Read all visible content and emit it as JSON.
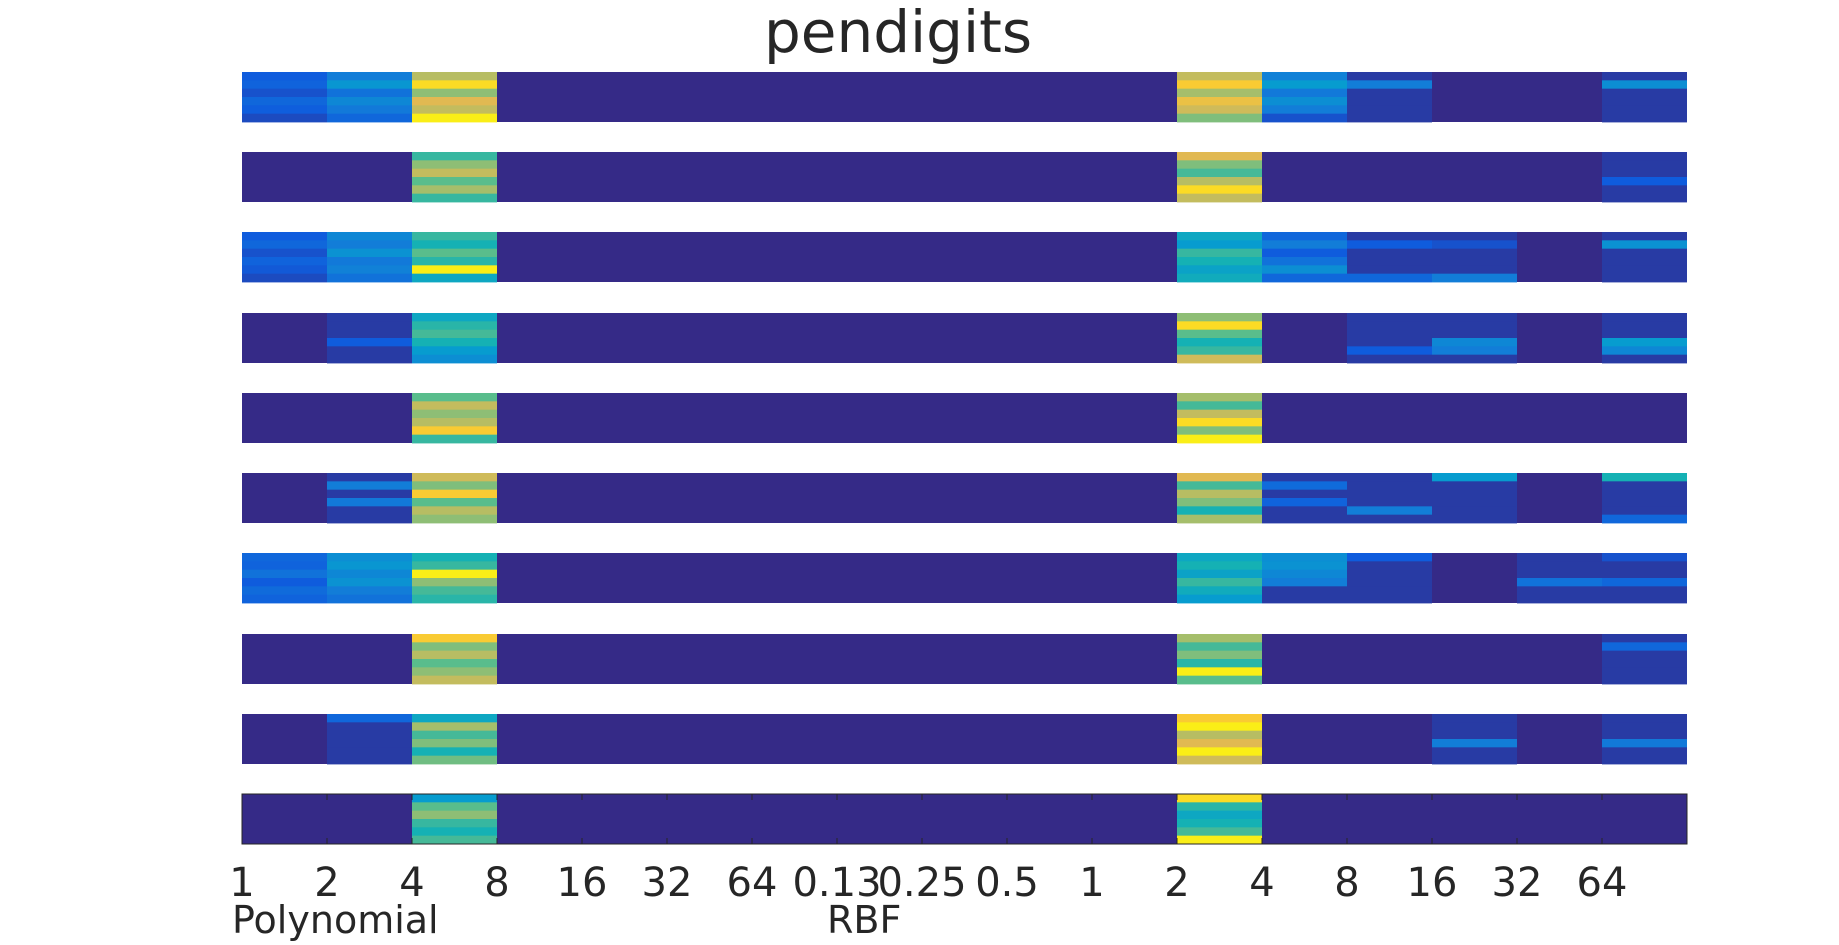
{
  "chart_data": {
    "type": "heatmap",
    "title": "pendigits",
    "colormap": "parula",
    "x_ticks": [
      "1",
      "2",
      "4",
      "8",
      "16",
      "32",
      "64",
      "0.13",
      "0.25",
      "0.5",
      "1",
      "2",
      "4",
      "8",
      "16",
      "32",
      "64"
    ],
    "x_groups": [
      {
        "label": "Polynomial",
        "columns": [
          0,
          6
        ]
      },
      {
        "label": "RBF",
        "columns": [
          7,
          16
        ]
      }
    ],
    "value_range": [
      0,
      1
    ],
    "strips": [
      {
        "stripes": [
          {
            "col": 0,
            "v": [
              0.15,
              0.18,
              0.12,
              0.2,
              0.16,
              0.1
            ]
          },
          {
            "col": 1,
            "v": [
              0.3,
              0.42,
              0.25,
              0.35,
              0.28,
              0.2
            ]
          },
          {
            "col": 2,
            "v": [
              0.78,
              0.95,
              0.72,
              0.85,
              0.8,
              0.98
            ]
          },
          {
            "col": 11,
            "v": [
              0.8,
              0.92,
              0.75,
              0.88,
              0.82,
              0.7
            ]
          },
          {
            "col": 12,
            "v": [
              0.32,
              0.45,
              0.28,
              0.38,
              0.3,
              0.12
            ]
          },
          {
            "col": 13,
            "v": [
              0.05,
              0.3,
              0.05,
              0.05,
              0.05,
              0.05
            ]
          },
          {
            "col": 16,
            "v": [
              0.05,
              0.38,
              0.05,
              0.05,
              0.05,
              0.05
            ]
          }
        ]
      },
      {
        "stripes": [
          {
            "col": 2,
            "v": [
              0.6,
              0.72,
              0.8,
              0.65,
              0.75,
              0.6
            ]
          },
          {
            "col": 11,
            "v": [
              0.85,
              0.7,
              0.62,
              0.78,
              0.95,
              0.8
            ]
          },
          {
            "col": 16,
            "v": [
              0.05,
              0.05,
              0.05,
              0.15,
              0.05,
              0.05
            ]
          }
        ]
      },
      {
        "stripes": [
          {
            "col": 0,
            "v": [
              0.15,
              0.2,
              0.12,
              0.18,
              0.14,
              0.1
            ]
          },
          {
            "col": 1,
            "v": [
              0.35,
              0.3,
              0.4,
              0.28,
              0.32,
              0.25
            ]
          },
          {
            "col": 2,
            "v": [
              0.6,
              0.55,
              0.65,
              0.58,
              0.98,
              0.5
            ]
          },
          {
            "col": 11,
            "v": [
              0.5,
              0.45,
              0.6,
              0.55,
              0.48,
              0.52
            ]
          },
          {
            "col": 12,
            "v": [
              0.2,
              0.3,
              0.15,
              0.25,
              0.38,
              0.2
            ]
          },
          {
            "col": 13,
            "v": [
              0.05,
              0.15,
              0.05,
              0.05,
              0.05,
              0.2
            ]
          },
          {
            "col": 14,
            "v": [
              0.05,
              0.12,
              0.05,
              0.05,
              0.05,
              0.3
            ]
          },
          {
            "col": 16,
            "v": [
              0.05,
              0.4,
              0.05,
              0.05,
              0.05,
              0.05
            ]
          }
        ]
      },
      {
        "stripes": [
          {
            "col": 1,
            "v": [
              0.05,
              0.05,
              0.05,
              0.15,
              0.05,
              0.05
            ]
          },
          {
            "col": 2,
            "v": [
              0.5,
              0.58,
              0.62,
              0.55,
              0.45,
              0.38
            ]
          },
          {
            "col": 11,
            "v": [
              0.72,
              0.95,
              0.65,
              0.55,
              0.6,
              0.82
            ]
          },
          {
            "col": 13,
            "v": [
              0.05,
              0.05,
              0.05,
              0.05,
              0.15,
              0.05
            ]
          },
          {
            "col": 14,
            "v": [
              0.05,
              0.05,
              0.05,
              0.35,
              0.3,
              0.05
            ]
          },
          {
            "col": 16,
            "v": [
              0.05,
              0.05,
              0.05,
              0.45,
              0.35,
              0.05
            ]
          }
        ]
      },
      {
        "stripes": [
          {
            "col": 2,
            "v": [
              0.65,
              0.8,
              0.72,
              0.78,
              0.92,
              0.6
            ]
          },
          {
            "col": 11,
            "v": [
              0.75,
              0.62,
              0.8,
              0.95,
              0.7,
              0.98
            ]
          }
        ]
      },
      {
        "stripes": [
          {
            "col": 1,
            "v": [
              0.05,
              0.3,
              0.05,
              0.28,
              0.05,
              0.05
            ]
          },
          {
            "col": 2,
            "v": [
              0.82,
              0.7,
              0.92,
              0.65,
              0.78,
              0.72
            ]
          },
          {
            "col": 11,
            "v": [
              0.85,
              0.62,
              0.78,
              0.7,
              0.55,
              0.75
            ]
          },
          {
            "col": 12,
            "v": [
              0.05,
              0.22,
              0.05,
              0.18,
              0.05,
              0.05
            ]
          },
          {
            "col": 13,
            "v": [
              0.05,
              0.05,
              0.05,
              0.05,
              0.3,
              0.05
            ]
          },
          {
            "col": 14,
            "v": [
              0.45,
              0.05,
              0.05,
              0.05,
              0.05,
              0.05
            ]
          },
          {
            "col": 16,
            "v": [
              0.55,
              0.05,
              0.05,
              0.05,
              0.05,
              0.2
            ]
          }
        ]
      },
      {
        "stripes": [
          {
            "col": 0,
            "v": [
              0.2,
              0.18,
              0.25,
              0.15,
              0.22,
              0.18
            ]
          },
          {
            "col": 1,
            "v": [
              0.38,
              0.42,
              0.35,
              0.4,
              0.3,
              0.25
            ]
          },
          {
            "col": 2,
            "v": [
              0.55,
              0.6,
              0.98,
              0.72,
              0.62,
              0.58
            ]
          },
          {
            "col": 11,
            "v": [
              0.5,
              0.55,
              0.48,
              0.6,
              0.52,
              0.45
            ]
          },
          {
            "col": 12,
            "v": [
              0.38,
              0.4,
              0.35,
              0.3,
              0.05,
              0.05
            ]
          },
          {
            "col": 13,
            "v": [
              0.15,
              0.05,
              0.05,
              0.05,
              0.05,
              0.05
            ]
          },
          {
            "col": 15,
            "v": [
              0.05,
              0.05,
              0.05,
              0.25,
              0.05,
              0.05
            ]
          },
          {
            "col": 16,
            "v": [
              0.12,
              0.05,
              0.05,
              0.2,
              0.05,
              0.05
            ]
          }
        ]
      },
      {
        "stripes": [
          {
            "col": 2,
            "v": [
              0.92,
              0.7,
              0.78,
              0.65,
              0.72,
              0.8
            ]
          },
          {
            "col": 11,
            "v": [
              0.75,
              0.62,
              0.7,
              0.58,
              0.98,
              0.65
            ]
          },
          {
            "col": 16,
            "v": [
              0.05,
              0.2,
              0.05,
              0.05,
              0.05,
              0.05
            ]
          }
        ]
      },
      {
        "stripes": [
          {
            "col": 1,
            "v": [
              0.2,
              0.05,
              0.05,
              0.05,
              0.05,
              0.05
            ]
          },
          {
            "col": 2,
            "v": [
              0.5,
              0.75,
              0.62,
              0.7,
              0.55,
              0.68
            ]
          },
          {
            "col": 11,
            "v": [
              0.92,
              0.98,
              0.78,
              0.85,
              0.98,
              0.82
            ]
          },
          {
            "col": 14,
            "v": [
              0.05,
              0.05,
              0.05,
              0.3,
              0.05,
              0.05
            ]
          },
          {
            "col": 16,
            "v": [
              0.05,
              0.05,
              0.05,
              0.28,
              0.05,
              0.05
            ]
          }
        ]
      },
      {
        "stripes": [
          {
            "col": 2,
            "v": [
              0.45,
              0.65,
              0.72,
              0.6,
              0.55,
              0.62
            ]
          },
          {
            "col": 11,
            "v": [
              0.95,
              0.58,
              0.5,
              0.55,
              0.62,
              0.98
            ]
          }
        ]
      }
    ]
  }
}
